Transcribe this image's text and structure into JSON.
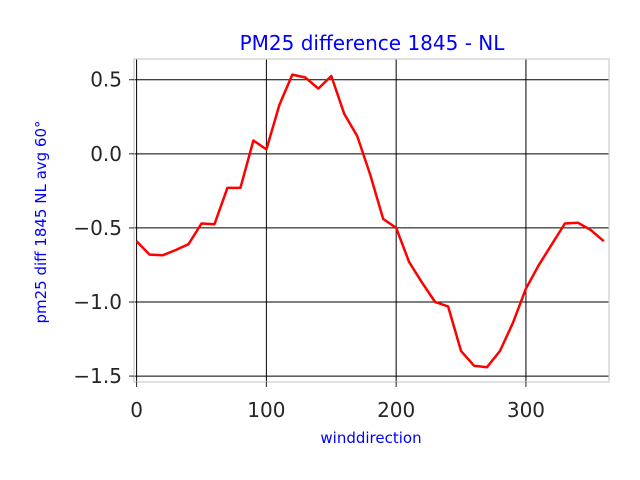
{
  "chart_data": {
    "type": "line",
    "title": "PM25 difference 1845 - NL",
    "xlabel": "winddirection",
    "ylabel": "pm25 diff 1845 NL avg 60°",
    "xlim": [
      -2,
      364
    ],
    "ylim": [
      -1.54,
      0.64
    ],
    "xticks": [
      0,
      100,
      200,
      300
    ],
    "xtick_labels": [
      "0",
      "100",
      "200",
      "300"
    ],
    "yticks": [
      0.5,
      0.0,
      -0.5,
      -1.0,
      -1.5
    ],
    "ytick_labels": [
      "0.5",
      "0.0",
      "−0.5",
      "−1.0",
      "−1.5"
    ],
    "grid": true,
    "series": [
      {
        "color": "#ff0000",
        "x": [
          0,
          10,
          20,
          30,
          40,
          50,
          60,
          70,
          80,
          90,
          100,
          110,
          120,
          130,
          140,
          150,
          160,
          170,
          180,
          190,
          200,
          210,
          220,
          230,
          240,
          250,
          260,
          270,
          280,
          290,
          300,
          310,
          320,
          330,
          340,
          350,
          360
        ],
        "y": [
          -0.59,
          -0.68,
          -0.685,
          -0.65,
          -0.61,
          -0.47,
          -0.475,
          -0.23,
          -0.23,
          0.09,
          0.03,
          0.33,
          0.535,
          0.515,
          0.44,
          0.525,
          0.27,
          0.12,
          -0.14,
          -0.44,
          -0.5,
          -0.73,
          -0.87,
          -1.0,
          -1.03,
          -1.33,
          -1.43,
          -1.44,
          -1.33,
          -1.14,
          -0.91,
          -0.75,
          -0.61,
          -0.47,
          -0.465,
          -0.515,
          -0.59
        ]
      }
    ]
  }
}
